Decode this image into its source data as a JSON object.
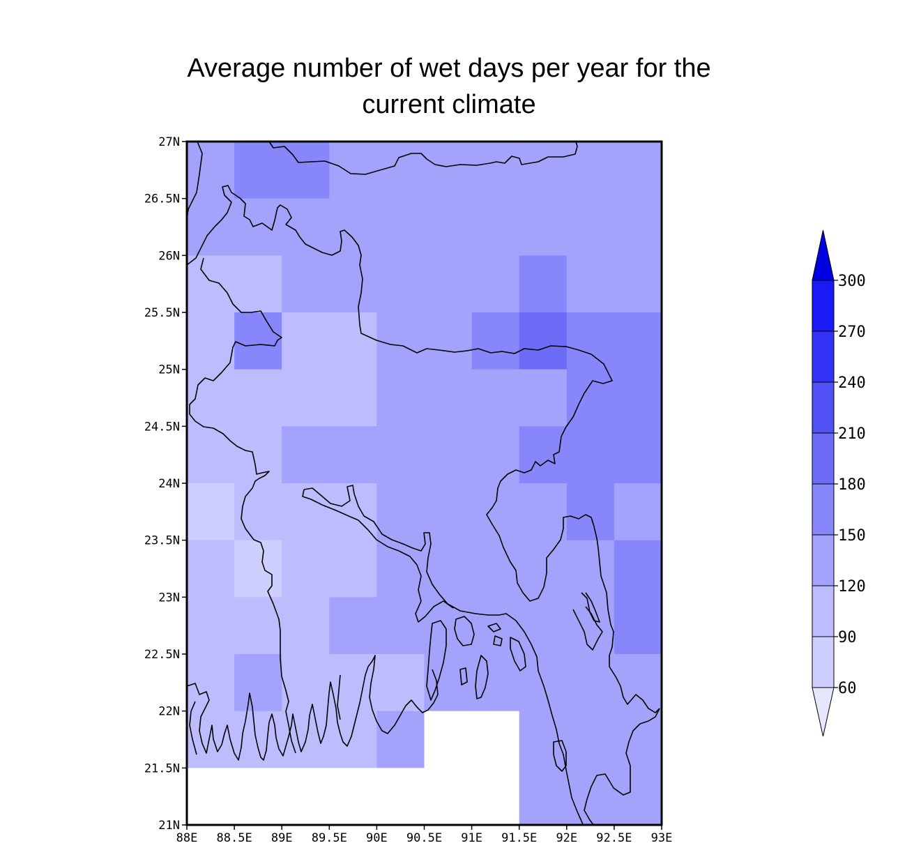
{
  "title": {
    "line1": "Average number of wet days per year for the",
    "line2": "current climate"
  },
  "map": {
    "lon_range": [
      88,
      93
    ],
    "lat_range": [
      21,
      27
    ],
    "x_ticks": [
      "88E",
      "88.5E",
      "89E",
      "89.5E",
      "90E",
      "90.5E",
      "91E",
      "91.5E",
      "92E",
      "92.5E",
      "93E"
    ],
    "y_ticks": [
      "21N",
      "21.5N",
      "22N",
      "22.5N",
      "23N",
      "23.5N",
      "24N",
      "24.5N",
      "25N",
      "25.5N",
      "26N",
      "26.5N",
      "27N"
    ],
    "cell_size_deg": 0.5,
    "grid_lon_start": 88,
    "grid_lat_start": 27,
    "shading_bins": [
      {
        "range": "60-90",
        "color": "#cfcfff"
      },
      {
        "range": "90-120",
        "color": "#bcbcff"
      },
      {
        "range": "120-150",
        "color": "#a3a3fc"
      },
      {
        "range": "150-180",
        "color": "#8787fb"
      },
      {
        "range": "180-210",
        "color": "#6c6cf6"
      },
      {
        "range": "210-240",
        "color": "#5050f4"
      },
      {
        "range": "240-270",
        "color": "#3333f6"
      },
      {
        "range": "270-300",
        "color": "#1a1af5"
      },
      {
        "range": ">300",
        "color": "#0000e0"
      }
    ],
    "grid_bins": [
      [
        2,
        3,
        3,
        2,
        2,
        2,
        2,
        2,
        2,
        2
      ],
      [
        2,
        2,
        2,
        2,
        2,
        2,
        2,
        2,
        2,
        2
      ],
      [
        1,
        1,
        2,
        2,
        2,
        2,
        2,
        3,
        2,
        2
      ],
      [
        1,
        3,
        1,
        1,
        2,
        2,
        3,
        4,
        3,
        3
      ],
      [
        1,
        1,
        1,
        1,
        2,
        2,
        2,
        2,
        3,
        3
      ],
      [
        1,
        1,
        2,
        2,
        2,
        2,
        2,
        3,
        3,
        3
      ],
      [
        0,
        1,
        1,
        1,
        2,
        2,
        2,
        2,
        3,
        2
      ],
      [
        1,
        0,
        1,
        1,
        2,
        2,
        2,
        2,
        2,
        3
      ],
      [
        1,
        1,
        1,
        2,
        2,
        2,
        2,
        2,
        2,
        3
      ],
      [
        1,
        2,
        1,
        1,
        1,
        2,
        2,
        2,
        2,
        2
      ],
      [
        1,
        1,
        1,
        1,
        2,
        -1,
        -1,
        2,
        2,
        2
      ],
      [
        -1,
        -1,
        -1,
        -1,
        -1,
        -1,
        -1,
        2,
        2,
        2
      ]
    ],
    "missing_color": "#ffffff"
  },
  "colorbar": {
    "labels": [
      "60",
      "90",
      "120",
      "150",
      "180",
      "210",
      "240",
      "270",
      "300"
    ],
    "under_color": "#e6e6ff",
    "over_color": "#0000e0",
    "segment_colors": [
      "#cfcfff",
      "#bcbcff",
      "#a3a3fc",
      "#8787fb",
      "#6c6cf6",
      "#5050f4",
      "#3333f6",
      "#1a1af5"
    ]
  }
}
